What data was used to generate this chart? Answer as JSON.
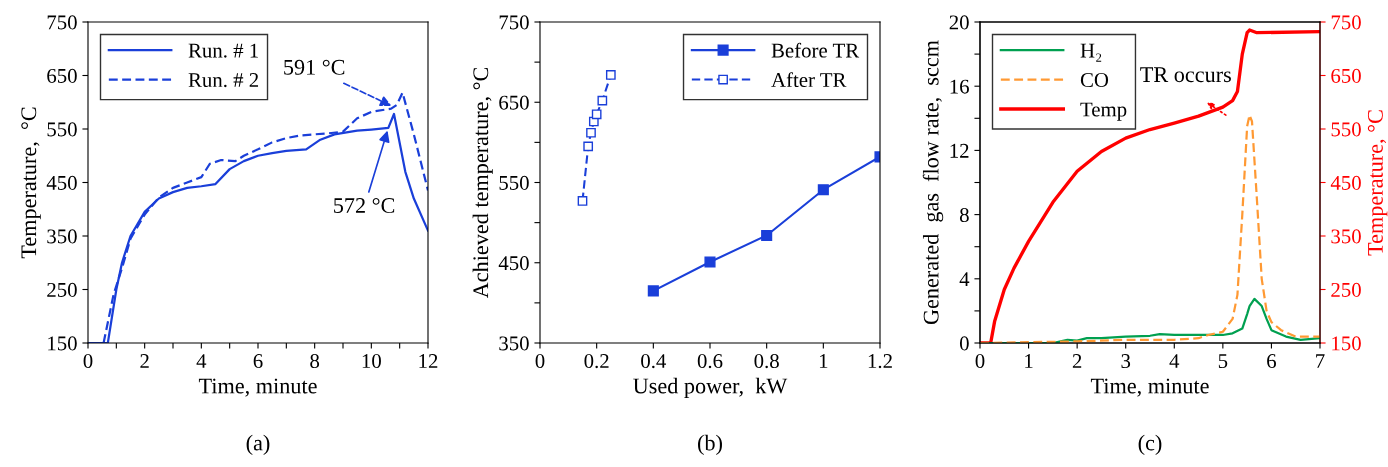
{
  "chart_data": [
    {
      "type": "line",
      "xlabel": "Time, minute",
      "ylabel": "Temperature,  °C",
      "xlim": [
        0,
        12
      ],
      "ylim": [
        150,
        750
      ],
      "xticks": [
        0,
        {
          "value": 1,
          "label": null
        },
        2,
        {
          "value": 3,
          "label": null
        },
        4,
        {
          "value": 5,
          "label": null
        },
        6,
        {
          "value": 7,
          "label": null
        },
        8,
        {
          "value": 9,
          "label": null
        },
        10,
        {
          "value": 11,
          "label": null
        },
        12
      ],
      "yticks": [
        150,
        250,
        350,
        450,
        550,
        650,
        750
      ],
      "legend": "top left",
      "grid": false,
      "series": [
        {
          "name": "Run. # 1",
          "color": "#1a3fd9",
          "line_style": "solid",
          "x": [
            0,
            0.7,
            1.0,
            1.2,
            1.5,
            2,
            2.5,
            3,
            3.5,
            4,
            4.5,
            5,
            5.5,
            6,
            6.5,
            7,
            7.7,
            8.2,
            8.7,
            9.5,
            10,
            10.6,
            10.8,
            11.2,
            11.5,
            12
          ],
          "values": [
            150,
            150,
            250,
            300,
            350,
            395,
            420,
            432,
            440,
            443,
            447,
            475,
            490,
            500,
            505,
            509,
            512,
            530,
            540,
            547,
            549,
            552,
            578,
            470,
            420,
            360
          ]
        },
        {
          "name": "Run. # 2",
          "color": "#1a3fd9",
          "line_style": "dashed",
          "x": [
            0.55,
            0.9,
            1.2,
            1.5,
            2,
            2.5,
            3,
            3.5,
            4,
            4.3,
            4.7,
            5.2,
            5.5,
            6,
            6.5,
            7,
            7.5,
            8,
            8.5,
            9,
            9.5,
            10,
            10.7,
            10.9,
            11.1,
            11.5,
            12
          ],
          "values": [
            150,
            240,
            290,
            345,
            390,
            422,
            440,
            450,
            460,
            485,
            492,
            490,
            500,
            512,
            525,
            533,
            538,
            540,
            542,
            545,
            570,
            582,
            588,
            595,
            618,
            540,
            435
          ]
        }
      ],
      "annotations": [
        {
          "text": "591 °C",
          "x": 10.8,
          "y": 591
        },
        {
          "text": "572 °C",
          "x": 10.6,
          "y": 552
        },
        "(a)"
      ]
    },
    {
      "type": "line",
      "xlabel": "Used power,  kW",
      "ylabel": "Achieved temperature, °C",
      "xlim": [
        0,
        1.2
      ],
      "ylim": [
        350,
        750
      ],
      "xticks": [
        0,
        {
          "value": 0.2,
          "label": "0.2"
        },
        {
          "value": 0.4,
          "label": "0.4"
        },
        {
          "value": 0.6,
          "label": "0.6"
        },
        {
          "value": 0.8,
          "label": "0.8"
        },
        1,
        {
          "value": 1.2,
          "label": "1.2"
        }
      ],
      "yticks": [
        350,
        {
          "value": 400,
          "label": null
        },
        450,
        {
          "value": 500,
          "label": null
        },
        550,
        {
          "value": 600,
          "label": null
        },
        650,
        {
          "value": 700,
          "label": null
        },
        750
      ],
      "legend": "top right",
      "grid": false,
      "marker": "square",
      "series": [
        {
          "name": "Before TR",
          "color": "#1a3fd9",
          "line_style": "solid",
          "x": [
            0.4,
            0.6,
            0.8,
            1.0,
            1.2
          ],
          "values": [
            415,
            451,
            484,
            541,
            582
          ]
        },
        {
          "name": "After TR",
          "color": "#1a3fd9",
          "line_style": "dashed",
          "x": [
            0.15,
            0.17,
            0.18,
            0.19,
            0.2,
            0.22,
            0.25
          ],
          "values": [
            527,
            595,
            612,
            626,
            635,
            652,
            684
          ]
        }
      ],
      "annotations": [
        "(b)"
      ]
    },
    {
      "type": "line",
      "xlabel": "Time, minute",
      "ylabel": "Generated  gas  flow rate,  sccm",
      "y2label": "Temperature, °C",
      "xlim": [
        0,
        7
      ],
      "ylim": [
        0,
        20
      ],
      "y2lim": [
        150,
        750
      ],
      "xticks": [
        0,
        1,
        2,
        3,
        4,
        5,
        6,
        7
      ],
      "yticks": [
        0,
        {
          "value": 2,
          "label": null
        },
        4,
        {
          "value": 6,
          "label": null
        },
        8,
        {
          "value": 10,
          "label": null
        },
        12,
        {
          "value": 14,
          "label": null
        },
        16,
        {
          "value": 18,
          "label": null
        },
        20
      ],
      "y2ticks": [
        150,
        250,
        350,
        450,
        550,
        650,
        750
      ],
      "legend": "top left",
      "grid": false,
      "series": [
        {
          "name": "H₂",
          "color": "#00a050",
          "line_style": "solid",
          "x": [
            0,
            1.5,
            1.8,
            2,
            2.2,
            2.5,
            3,
            3.5,
            3.7,
            4,
            4.5,
            5,
            5.2,
            5.4,
            5.5,
            5.55,
            5.65,
            5.8,
            5.9,
            6.0,
            6.3,
            6.6,
            7
          ],
          "values": [
            0,
            0,
            0.2,
            0.15,
            0.3,
            0.3,
            0.4,
            0.45,
            0.55,
            0.5,
            0.5,
            0.5,
            0.6,
            0.9,
            1.8,
            2.3,
            2.75,
            2.3,
            1.5,
            0.8,
            0.4,
            0.2,
            0.3
          ]
        },
        {
          "name": "CO",
          "color": "#ff9933",
          "line_style": "dashed",
          "x": [
            0,
            1,
            2,
            3,
            4,
            4.5,
            4.7,
            5.0,
            5.2,
            5.3,
            5.4,
            5.5,
            5.55,
            5.6,
            5.7,
            5.8,
            5.9,
            6.0,
            6.2,
            6.5,
            7
          ],
          "values": [
            0,
            0.05,
            0.1,
            0.2,
            0.2,
            0.3,
            0.5,
            0.7,
            1.5,
            3,
            8,
            13.5,
            14.2,
            13.8,
            9,
            4,
            2,
            1.3,
            0.8,
            0.4,
            0.4
          ]
        },
        {
          "name": "Temp",
          "color": "#ff0000",
          "line_style": "solid",
          "axis": "y2",
          "x": [
            0,
            0.22,
            0.3,
            0.5,
            0.7,
            1.0,
            1.5,
            2.0,
            2.5,
            3.0,
            3.5,
            4.0,
            4.5,
            5.0,
            5.2,
            5.3,
            5.4,
            5.5,
            5.55,
            5.7,
            7
          ],
          "values": [
            150,
            150,
            190,
            250,
            290,
            340,
            413,
            471,
            508,
            533,
            549,
            561,
            574,
            591,
            603,
            620,
            690,
            730,
            735,
            730,
            732
          ]
        }
      ],
      "annotations": [
        "TR occurs",
        "(c)"
      ]
    }
  ]
}
